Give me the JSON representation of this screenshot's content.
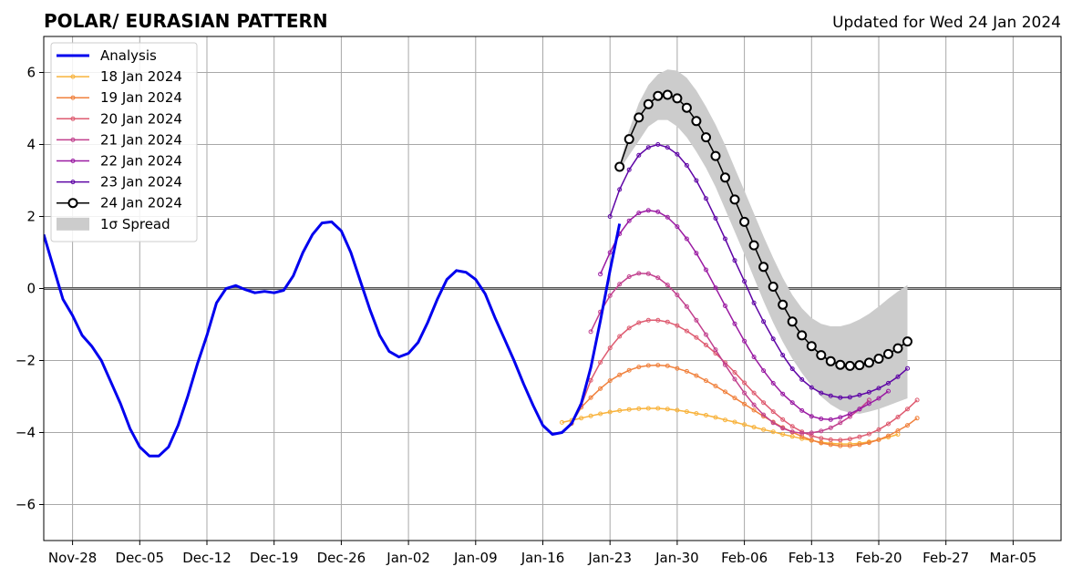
{
  "chart_data": {
    "type": "line",
    "title": "POLAR/ EURASIAN  PATTERN",
    "subtitle": "Updated for Wed 24 Jan 2024",
    "xlabel": "",
    "ylabel": "",
    "x_range": [
      "2023-11-25",
      "2024-03-10"
    ],
    "ylim": [
      -7,
      7
    ],
    "x_ticks": [
      {
        "date": "2023-11-28",
        "label": "Nov-28"
      },
      {
        "date": "2023-12-05",
        "label": "Dec-05"
      },
      {
        "date": "2023-12-12",
        "label": "Dec-12"
      },
      {
        "date": "2023-12-19",
        "label": "Dec-19"
      },
      {
        "date": "2023-12-26",
        "label": "Dec-26"
      },
      {
        "date": "2024-01-02",
        "label": "Jan-02"
      },
      {
        "date": "2024-01-09",
        "label": "Jan-09"
      },
      {
        "date": "2024-01-16",
        "label": "Jan-16"
      },
      {
        "date": "2024-01-23",
        "label": "Jan-23"
      },
      {
        "date": "2024-01-30",
        "label": "Jan-30"
      },
      {
        "date": "2024-02-06",
        "label": "Feb-06"
      },
      {
        "date": "2024-02-13",
        "label": "Feb-13"
      },
      {
        "date": "2024-02-20",
        "label": "Feb-20"
      },
      {
        "date": "2024-02-27",
        "label": "Feb-27"
      },
      {
        "date": "2024-03-05",
        "label": "Mar-05"
      }
    ],
    "y_ticks": [
      {
        "value": -6,
        "label": "−6"
      },
      {
        "value": -4,
        "label": "−4"
      },
      {
        "value": -2,
        "label": "−2"
      },
      {
        "value": 0,
        "label": "0"
      },
      {
        "value": 2,
        "label": "2"
      },
      {
        "value": 4,
        "label": "4"
      },
      {
        "value": 6,
        "label": "6"
      }
    ],
    "grid": true,
    "legend_position": "top-left",
    "analysis": {
      "name": "Analysis",
      "color": "#0000ee",
      "start_date": "2023-11-25",
      "values": [
        1.5,
        0.6,
        -0.3,
        -0.75,
        -1.3,
        -1.6,
        -2.0,
        -2.6,
        -3.2,
        -3.9,
        -4.4,
        -4.65,
        -4.65,
        -4.4,
        -3.8,
        -3.0,
        -2.1,
        -1.3,
        -0.4,
        0.0,
        0.08,
        -0.03,
        -0.12,
        -0.08,
        -0.12,
        -0.05,
        0.35,
        1.0,
        1.5,
        1.82,
        1.85,
        1.6,
        1.0,
        0.2,
        -0.6,
        -1.3,
        -1.75,
        -1.9,
        -1.8,
        -1.5,
        -0.95,
        -0.3,
        0.25,
        0.5,
        0.45,
        0.25,
        -0.15,
        -0.8,
        -1.4,
        -2.0,
        -2.65,
        -3.25,
        -3.8,
        -4.05,
        -4.0,
        -3.75,
        -3.2,
        -2.2,
        -0.9,
        0.5,
        1.8
      ]
    },
    "forecasts": [
      {
        "name": "18 Jan 2024",
        "color": "#f8b23a",
        "start_date": "2024-01-18",
        "values": [
          -3.72,
          -3.66,
          -3.6,
          -3.54,
          -3.48,
          -3.43,
          -3.39,
          -3.36,
          -3.34,
          -3.33,
          -3.33,
          -3.35,
          -3.38,
          -3.42,
          -3.47,
          -3.52,
          -3.58,
          -3.65,
          -3.71,
          -3.78,
          -3.85,
          -3.92,
          -3.98,
          -4.05,
          -4.11,
          -4.17,
          -4.22,
          -4.27,
          -4.3,
          -4.32,
          -4.32,
          -4.3,
          -4.26,
          -4.2,
          -4.13,
          -4.05
        ]
      },
      {
        "name": "19 Jan 2024",
        "color": "#f0803c",
        "start_date": "2024-01-19",
        "values": [
          -3.75,
          -3.3,
          -3.03,
          -2.78,
          -2.56,
          -2.4,
          -2.27,
          -2.18,
          -2.14,
          -2.13,
          -2.15,
          -2.22,
          -2.3,
          -2.42,
          -2.56,
          -2.71,
          -2.87,
          -3.04,
          -3.21,
          -3.38,
          -3.55,
          -3.71,
          -3.86,
          -3.99,
          -4.11,
          -4.21,
          -4.29,
          -4.34,
          -4.37,
          -4.37,
          -4.34,
          -4.28,
          -4.2,
          -4.09,
          -3.95,
          -3.8,
          -3.6
        ]
      },
      {
        "name": "20 Jan 2024",
        "color": "#de5b70",
        "start_date": "2024-01-20",
        "values": [
          -3.25,
          -2.55,
          -2.05,
          -1.65,
          -1.33,
          -1.1,
          -0.95,
          -0.88,
          -0.88,
          -0.93,
          -1.03,
          -1.18,
          -1.36,
          -1.57,
          -1.8,
          -2.06,
          -2.33,
          -2.62,
          -2.9,
          -3.17,
          -3.42,
          -3.64,
          -3.83,
          -3.98,
          -4.09,
          -4.16,
          -4.2,
          -4.21,
          -4.18,
          -4.12,
          -4.04,
          -3.92,
          -3.76,
          -3.57,
          -3.35,
          -3.1
        ]
      },
      {
        "name": "21 Jan 2024",
        "color": "#c13f8d",
        "start_date": "2024-01-21",
        "values": [
          -1.2,
          -0.65,
          -0.2,
          0.12,
          0.33,
          0.42,
          0.41,
          0.3,
          0.1,
          -0.18,
          -0.5,
          -0.88,
          -1.28,
          -1.7,
          -2.12,
          -2.52,
          -2.9,
          -3.23,
          -3.51,
          -3.73,
          -3.88,
          -3.98,
          -4.02,
          -4.01,
          -3.96,
          -3.87,
          -3.73,
          -3.56,
          -3.35,
          -3.1
        ]
      },
      {
        "name": "22 Jan 2024",
        "color": "#9a1aa2",
        "start_date": "2024-01-22",
        "values": [
          0.4,
          1.0,
          1.52,
          1.88,
          2.1,
          2.17,
          2.13,
          1.98,
          1.72,
          1.38,
          0.98,
          0.52,
          0.02,
          -0.48,
          -0.98,
          -1.46,
          -1.9,
          -2.28,
          -2.63,
          -2.93,
          -3.17,
          -3.39,
          -3.55,
          -3.62,
          -3.64,
          -3.58,
          -3.48,
          -3.35,
          -3.2,
          -3.05,
          -2.85
        ]
      },
      {
        "name": "23 Jan 2024",
        "color": "#5e04a5",
        "start_date": "2024-01-23",
        "values": [
          2.0,
          2.75,
          3.3,
          3.7,
          3.92,
          4.0,
          3.92,
          3.73,
          3.42,
          3.0,
          2.5,
          1.95,
          1.38,
          0.78,
          0.2,
          -0.4,
          -0.92,
          -1.4,
          -1.85,
          -2.23,
          -2.53,
          -2.75,
          -2.9,
          -2.98,
          -3.03,
          -3.02,
          -2.96,
          -2.88,
          -2.77,
          -2.63,
          -2.45,
          -2.22
        ]
      }
    ],
    "forecast_current": {
      "name": "24 Jan 2024",
      "color": "#000000",
      "start_date": "2024-01-24",
      "values": [
        3.38,
        4.15,
        4.75,
        5.12,
        5.35,
        5.38,
        5.28,
        5.02,
        4.65,
        4.2,
        3.68,
        3.08,
        2.47,
        1.85,
        1.2,
        0.6,
        0.05,
        -0.45,
        -0.92,
        -1.3,
        -1.6,
        -1.85,
        -2.02,
        -2.12,
        -2.15,
        -2.13,
        -2.06,
        -1.95,
        -1.82,
        -1.66,
        -1.47
      ]
    },
    "spread": {
      "name": "1σ Spread",
      "color": "#cccccc",
      "start_date": "2024-01-24",
      "upper": [
        3.45,
        4.4,
        5.15,
        5.65,
        5.95,
        6.08,
        6.05,
        5.85,
        5.5,
        5.05,
        4.55,
        3.98,
        3.35,
        2.72,
        2.08,
        1.45,
        0.85,
        0.3,
        -0.18,
        -0.55,
        -0.82,
        -0.98,
        -1.05,
        -1.05,
        -0.98,
        -0.86,
        -0.7,
        -0.5,
        -0.28,
        -0.08,
        0.1
      ],
      "lower": [
        3.3,
        3.7,
        4.1,
        4.5,
        4.68,
        4.68,
        4.5,
        4.2,
        3.8,
        3.35,
        2.82,
        2.2,
        1.58,
        0.95,
        0.3,
        -0.35,
        -0.95,
        -1.48,
        -1.95,
        -2.35,
        -2.7,
        -3.0,
        -3.22,
        -3.38,
        -3.45,
        -3.48,
        -3.42,
        -3.35,
        -3.25,
        -3.15,
        -3.05
      ]
    }
  }
}
